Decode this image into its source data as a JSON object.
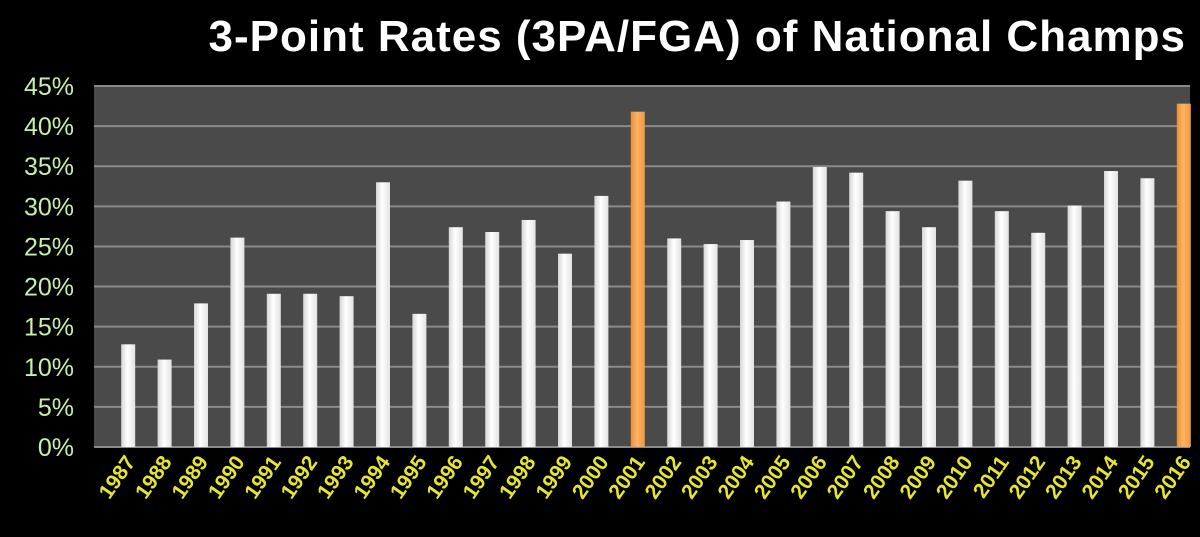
{
  "chart_data": {
    "type": "bar",
    "title": "3-Point Rates (3PA/FGA) of National Champs",
    "categories": [
      "1987",
      "1988",
      "1989",
      "1990",
      "1991",
      "1992",
      "1993",
      "1994",
      "1995",
      "1996",
      "1997",
      "1998",
      "1999",
      "2000",
      "2001",
      "2002",
      "2003",
      "2004",
      "2005",
      "2006",
      "2007",
      "2008",
      "2009",
      "2010",
      "2011",
      "2012",
      "2013",
      "2014",
      "2015",
      "2016"
    ],
    "values": [
      12.8,
      10.9,
      17.9,
      26.1,
      19.1,
      19.1,
      18.8,
      33.0,
      16.6,
      27.4,
      26.8,
      28.3,
      24.1,
      31.3,
      41.8,
      26.0,
      25.3,
      25.8,
      30.6,
      34.9,
      34.2,
      29.4,
      27.4,
      33.2,
      29.4,
      26.7,
      30.1,
      34.4,
      33.5,
      42.8
    ],
    "highlight_categories": [
      "2001",
      "2016"
    ],
    "xlabel": "",
    "ylabel": "",
    "ylim": [
      0,
      45
    ],
    "yticks": [
      "0%",
      "5%",
      "10%",
      "15%",
      "20%",
      "25%",
      "30%",
      "35%",
      "40%",
      "45%"
    ],
    "grid": true,
    "legend": "none",
    "colors": {
      "background": "#000000",
      "plot_background": "#4a4a4a",
      "gridline": "#8a8a8a",
      "bar": "#ffffff",
      "highlight_bar": "#f5a24a",
      "y_tick_text": "#c9f0a6",
      "x_tick_text": "#e6e62e",
      "title_text": "#ffffff"
    }
  }
}
